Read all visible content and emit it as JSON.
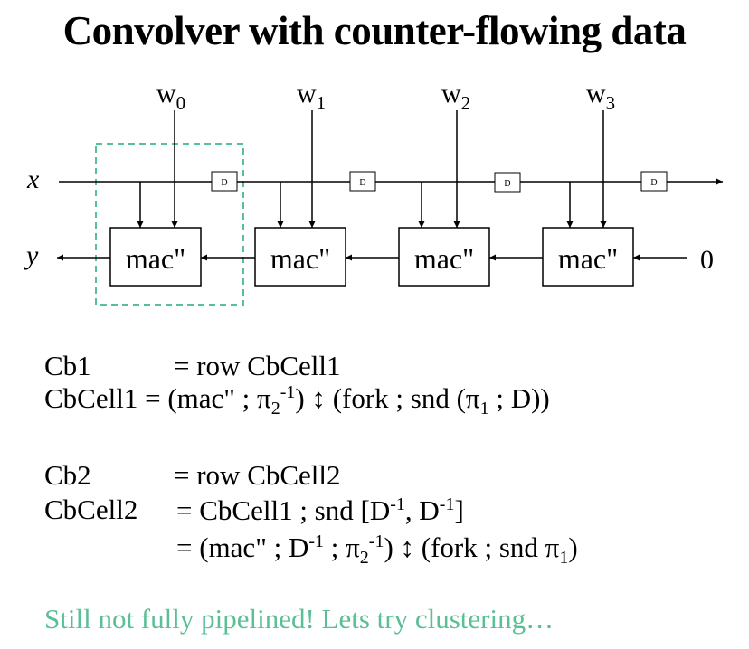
{
  "title": "Convolver with counter-flowing data",
  "diagram": {
    "input_x": "x",
    "output_y": "y",
    "zero": "0",
    "weights": [
      {
        "base": "w",
        "sub": "0"
      },
      {
        "base": "w",
        "sub": "1"
      },
      {
        "base": "w",
        "sub": "2"
      },
      {
        "base": "w",
        "sub": "3"
      }
    ],
    "cells": [
      "mac\"",
      "mac\"",
      "mac\"",
      "mac\""
    ],
    "delays": [
      "D",
      "D",
      "D",
      "D"
    ],
    "highlight_color": "#5bbf95"
  },
  "equations": {
    "l1_lhs": "Cb1",
    "l1_rhs": "=  row CbCell1",
    "l2_lhs": "CbCell1 =",
    "l2_a": " (mac\" ; π",
    "l2_sub2": "2",
    "l2_sup": "-1",
    "l2_b": ") ",
    "l2_arrow": "↕",
    "l2_c": " (fork ; snd (π",
    "l2_sub1": "1",
    "l2_d": " ; D))",
    "l3_lhs": "Cb2",
    "l3_rhs": "=  row CbCell2",
    "l4_lhs": "CbCell2",
    "l4_a": "=  CbCell1 ; snd [D",
    "l4_sup1": "-1",
    "l4_b": ", D",
    "l4_sup2": "-1",
    "l4_c": "]",
    "l5_a": "=  (mac\" ; D",
    "l5_sup1": "-1",
    "l5_b": " ; π",
    "l5_sub2": "2",
    "l5_sup2": "-1",
    "l5_c": ") ",
    "l5_arrow": "↕",
    "l5_d": " (fork ; snd π",
    "l5_sub1": "1",
    "l5_e": ")"
  },
  "footer": "Still not fully pipelined!  Lets try clustering…"
}
